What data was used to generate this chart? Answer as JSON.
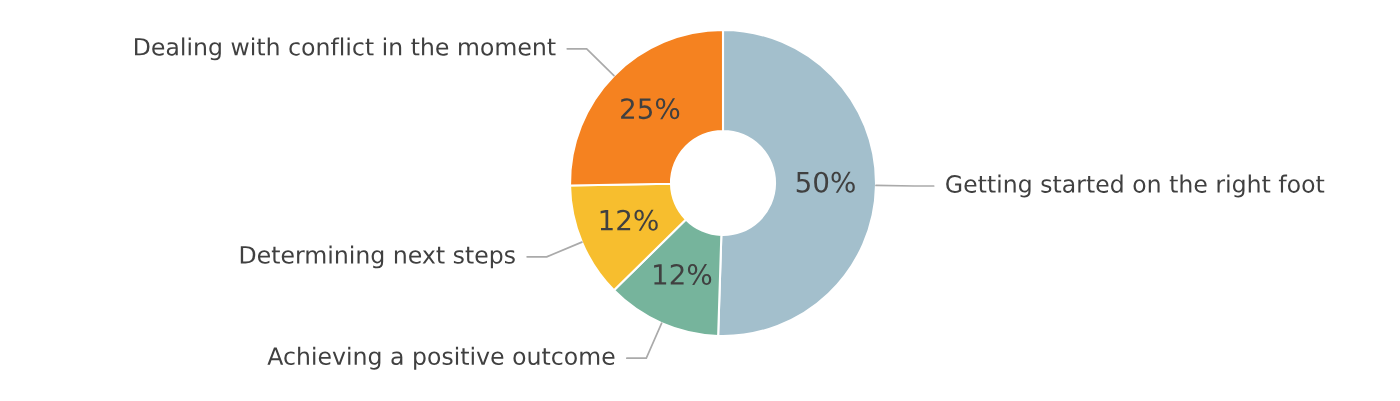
{
  "chart_data": {
    "type": "donut",
    "categories": [
      "Getting started on the right foot",
      "Achieving a positive outcome",
      "Determining next steps",
      "Dealing with conflict in the moment"
    ],
    "values": [
      50,
      12,
      12,
      25
    ],
    "value_labels": [
      "50%",
      "12%",
      "12%",
      "25%"
    ],
    "colors": [
      "#a3bfcc",
      "#76b49c",
      "#f7be2e",
      "#f58220"
    ],
    "legend": false
  }
}
